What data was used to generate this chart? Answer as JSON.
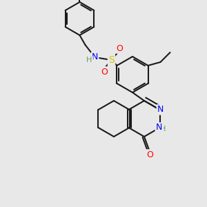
{
  "bg_color": "#e8e8e8",
  "bond_color": "#1a1a1a",
  "atom_colors": {
    "O": "#ff0000",
    "N": "#0000ff",
    "S": "#cccc00",
    "H": "#5fa05f",
    "C": "#1a1a1a"
  },
  "font_size": 9,
  "bond_width": 1.5
}
